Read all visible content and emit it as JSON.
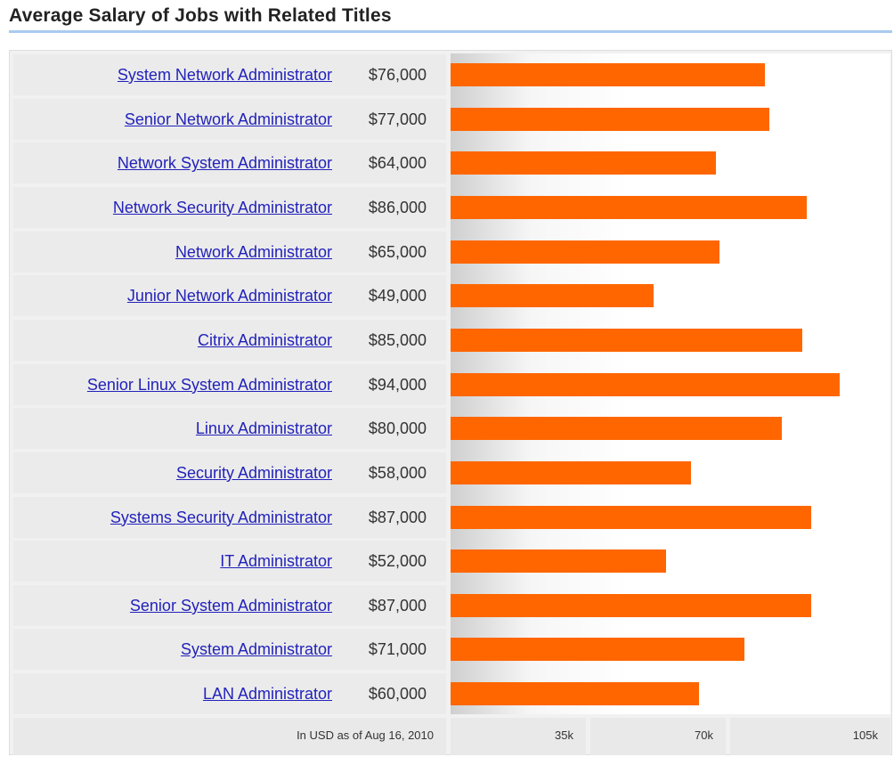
{
  "chart_data": {
    "type": "bar",
    "orientation": "horizontal",
    "title": "Average Salary of Jobs with Related Titles",
    "categories": [
      "System Network Administrator",
      "Senior Network Administrator",
      "Network System Administrator",
      "Network Security Administrator",
      "Network Administrator",
      "Junior Network Administrator",
      "Citrix Administrator",
      "Senior Linux System Administrator",
      "Linux Administrator",
      "Security Administrator",
      "Systems Security Administrator",
      "IT Administrator",
      "Senior System Administrator",
      "System Administrator",
      "LAN Administrator"
    ],
    "values": [
      76000,
      77000,
      64000,
      86000,
      65000,
      49000,
      85000,
      94000,
      80000,
      58000,
      87000,
      52000,
      87000,
      71000,
      60000
    ],
    "value_labels": [
      "$76,000",
      "$77,000",
      "$64,000",
      "$86,000",
      "$65,000",
      "$49,000",
      "$85,000",
      "$94,000",
      "$80,000",
      "$58,000",
      "$87,000",
      "$52,000",
      "$87,000",
      "$71,000",
      "$60,000"
    ],
    "x_ticks": [
      "35k",
      "70k",
      "105k"
    ],
    "xlim": [
      0,
      110000
    ],
    "footnote": "In USD as of Aug 16, 2010",
    "bar_color": "#ff6600"
  }
}
